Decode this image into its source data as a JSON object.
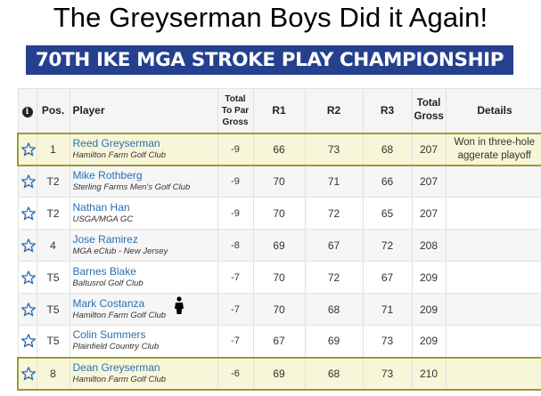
{
  "headline": "The Greyserman Boys Did it Again!",
  "banner": "70TH IKE MGA STROKE PLAY CHAMPIONSHIP",
  "colors": {
    "banner_bg": "#24408f",
    "highlight_bg": "#f8f6d8",
    "highlight_border": "#9a9a3a",
    "player_link": "#2a6fb0",
    "star_outline": "#2a6fb0"
  },
  "table": {
    "headers": {
      "info": "i",
      "pos": "Pos.",
      "player": "Player",
      "topar": "Total To Par Gross",
      "r1": "R1",
      "r2": "R2",
      "r3": "R3",
      "total": "Total Gross",
      "details": "Details"
    },
    "rows": [
      {
        "pos": "1",
        "name": "Reed Greyserman",
        "club": "Hamilton Farm Golf Club",
        "topar": "-9",
        "r1": "66",
        "r2": "73",
        "r3": "68",
        "total": "207",
        "details": "Won in three-hole aggerate playoff"
      },
      {
        "pos": "T2",
        "name": "Mike Rothberg",
        "club": "Sterling Farms Men's Golf Club",
        "topar": "-9",
        "r1": "70",
        "r2": "71",
        "r3": "66",
        "total": "207",
        "details": ""
      },
      {
        "pos": "T2",
        "name": "Nathan Han",
        "club": "USGA/MGA GC",
        "topar": "-9",
        "r1": "70",
        "r2": "72",
        "r3": "65",
        "total": "207",
        "details": ""
      },
      {
        "pos": "4",
        "name": "Jose Ramirez",
        "club": "MGA eClub - New Jersey",
        "topar": "-8",
        "r1": "69",
        "r2": "67",
        "r3": "72",
        "total": "208",
        "details": ""
      },
      {
        "pos": "T5",
        "name": "Barnes Blake",
        "club": "Baltusrol Golf Club",
        "topar": "-7",
        "r1": "70",
        "r2": "72",
        "r3": "67",
        "total": "209",
        "details": ""
      },
      {
        "pos": "T5",
        "name": "Mark Costanza",
        "club": "Hamilton Farm Golf Club",
        "topar": "-7",
        "r1": "70",
        "r2": "68",
        "r3": "71",
        "total": "209",
        "details": ""
      },
      {
        "pos": "T5",
        "name": "Colin Summers",
        "club": "Plainfield Country Club",
        "topar": "-7",
        "r1": "67",
        "r2": "69",
        "r3": "73",
        "total": "209",
        "details": ""
      },
      {
        "pos": "8",
        "name": "Dean Greyserman",
        "club": "Hamilton Farm Golf Club",
        "topar": "-6",
        "r1": "69",
        "r2": "68",
        "r3": "73",
        "total": "210",
        "details": ""
      }
    ]
  },
  "icons": {
    "favorite": "star-outline-icon",
    "info": "info-icon",
    "person": "person-icon"
  }
}
